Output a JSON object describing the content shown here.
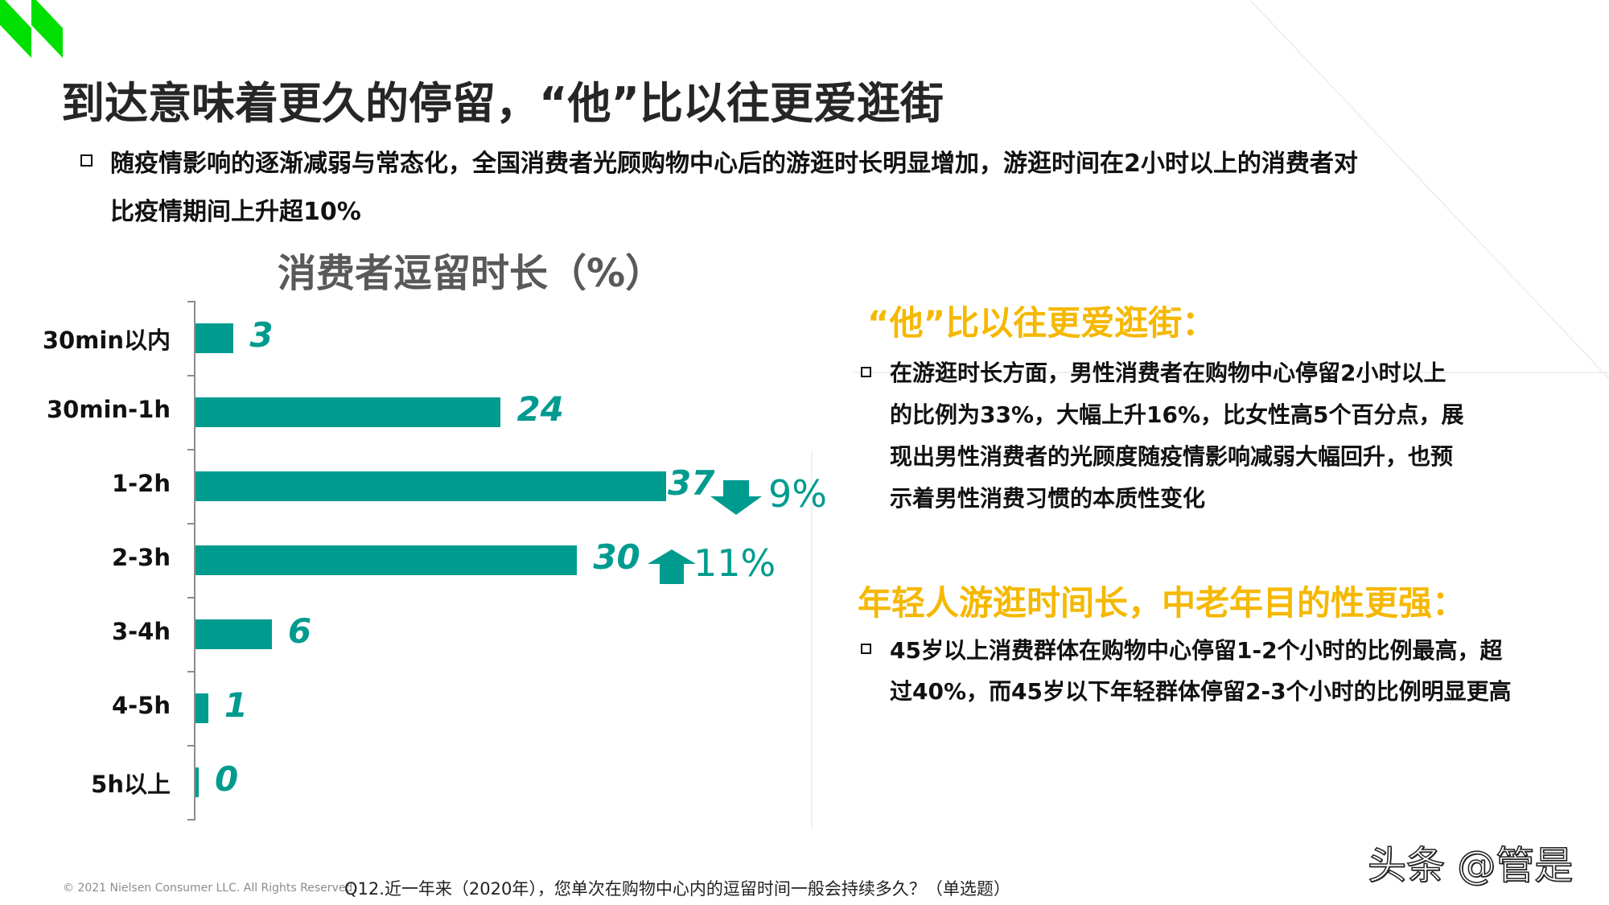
{
  "slide": {
    "title": "到达意味着更久的停留，“他”比以往更爱逛街",
    "intro_bullet": {
      "line1": "随疫情影响的逐渐减弱与常态化，全国消费者光顾购物中心后的游逛时长明显增加，游逛时间在2小时以上的消费者对",
      "line2": "比疫情期间上升超10%"
    },
    "brand_color": "#00E000"
  },
  "chart_data": {
    "type": "bar",
    "orientation": "horizontal",
    "title": "消费者逗留时长（%）",
    "categories": [
      "30min以内",
      "30min-1h",
      "1-2h",
      "2-3h",
      "3-4h",
      "4-5h",
      "5h以上"
    ],
    "values": [
      3,
      24,
      37,
      30,
      6,
      1,
      0
    ],
    "value_labels": [
      "3",
      "24",
      "37",
      "30",
      "6",
      "1",
      "0"
    ],
    "xlabel": "",
    "ylabel": "",
    "xlim": [
      0,
      40
    ],
    "grid": false,
    "legend": null,
    "bar_color": "#009B8F",
    "annotations": [
      {
        "category": "1-2h",
        "direction": "down",
        "arrow_icon": "arrow-down-icon",
        "text": "9%"
      },
      {
        "category": "2-3h",
        "direction": "up",
        "arrow_icon": "arrow-up-icon",
        "text": "11%"
      }
    ]
  },
  "side_panel": {
    "heading_color": "#F5B800",
    "section1": {
      "heading": "“他”比以往更爱逛街：",
      "lines": [
        "在游逛时长方面，男性消费者在购物中心停留2小时以上",
        "的比例为33%，大幅上升16%，比女性高5个百分点，展",
        "现出男性消费者的光顾度随疫情影响减弱大幅回升，也预",
        "示着男性消费习惯的本质性变化"
      ]
    },
    "section2": {
      "heading": "年轻人游逛时间长，中老年目的性更强：",
      "lines": [
        "45岁以上消费群体在购物中心停留1-2个小时的比例最高，超",
        "过40%，而45岁以下年轻群体停留2-3个小时的比例明显更高"
      ]
    }
  },
  "footer": {
    "copyright": "© 2021 Nielsen Consumer LLC. All Rights Reserved.",
    "question": "Q12.近一年来（2020年），您单次在购物中心内的逗留时间一般会持续多久？（单选题）",
    "watermark": "头条 @管是"
  }
}
